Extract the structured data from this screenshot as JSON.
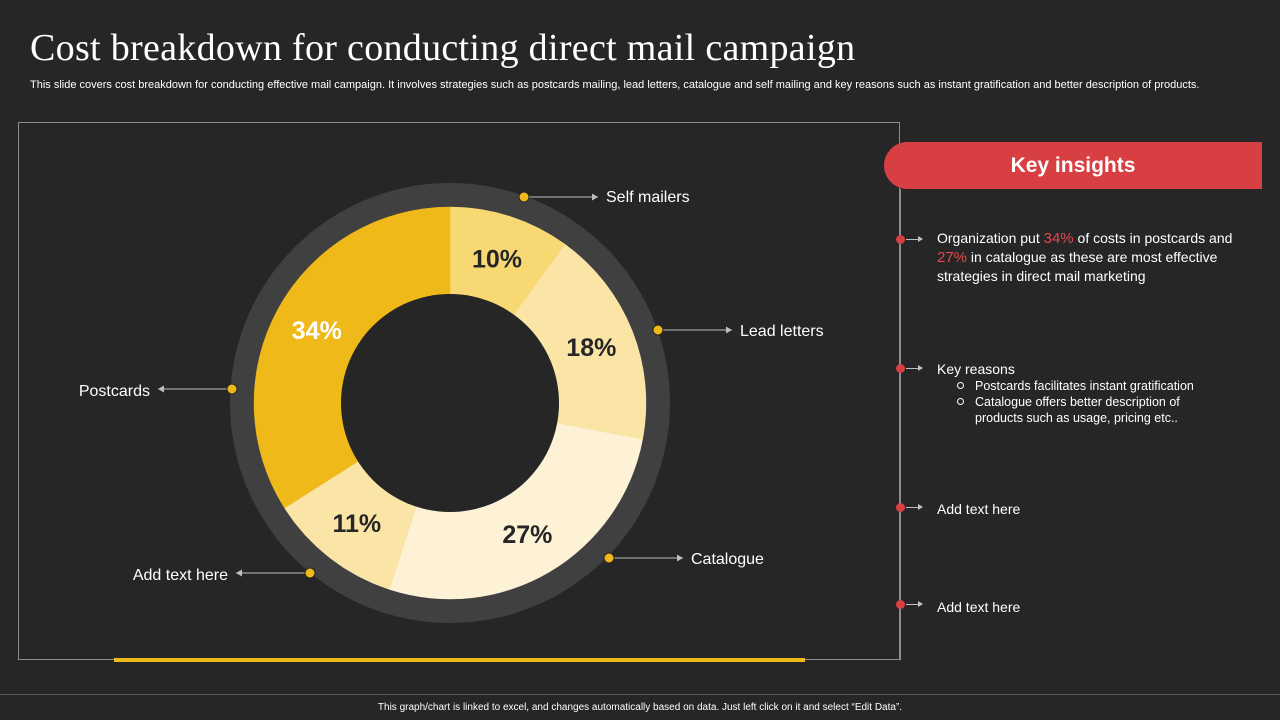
{
  "title": "Cost breakdown for conducting direct mail campaign",
  "subtitle": "This slide covers cost breakdown for conducting effective mail campaign. It involves strategies such as postcards mailing, lead letters, catalogue and self mailing and key reasons such as instant gratification and better description of products.",
  "chart_data": {
    "type": "pie",
    "categories": [
      "Self mailers",
      "Lead letters",
      "Catalogue",
      "Add text here",
      "Postcards"
    ],
    "values": [
      10,
      18,
      27,
      11,
      34
    ],
    "value_labels": [
      "10%",
      "18%",
      "27%",
      "11%",
      "34%"
    ],
    "colors": [
      "#f8d873",
      "#fae5a6",
      "#fdf2d6",
      "#fae5a6",
      "#f0b91a"
    ],
    "ring_color": "#404040",
    "legend_placement": "callouts around chart"
  },
  "insights": {
    "header": "Key insights",
    "item1": {
      "pre": "Organization put ",
      "hl1": "34%",
      "mid1": " of costs in postcards and ",
      "hl2": "27%",
      "post": " in catalogue as these are most effective strategies in direct mail marketing"
    },
    "item2": {
      "label": "Key reasons",
      "bullets": [
        "Postcards facilitates instant gratification",
        "Catalogue offers better description of products such as usage, pricing etc.."
      ]
    },
    "item3": "Add text here",
    "item4": "Add text here"
  },
  "footer": "This graph/chart is linked to excel, and changes automatically based on data. Just left click on it and select “Edit Data”.",
  "colors": {
    "background": "#262626",
    "accent": "#f0b91a",
    "highlight": "#d83f42"
  }
}
